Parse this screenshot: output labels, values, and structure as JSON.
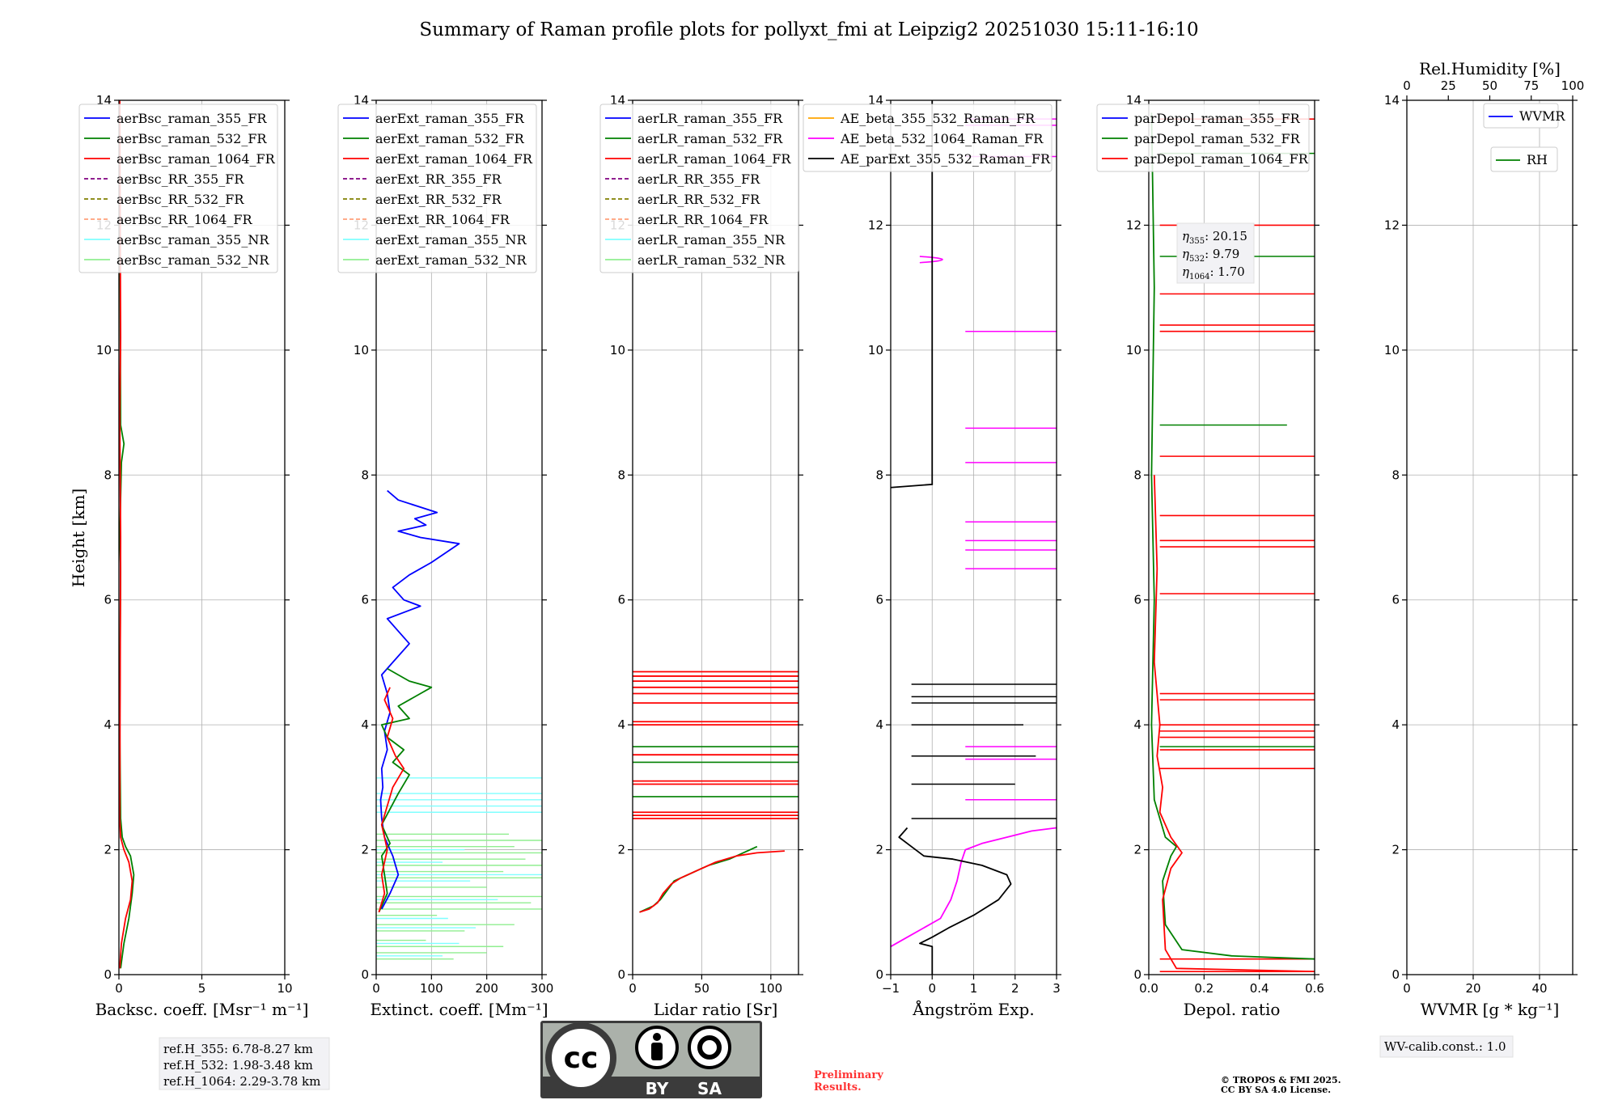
{
  "figure_title": "Summary of Raman profile plots for pollyxt_fmi at Leipzig2 20251030 15:11-16:10",
  "shared_ylabel": "Height [km]",
  "chart_data": [
    {
      "type": "line",
      "name": "backscatter",
      "xlabel": "Backsc. coeff. [Msr⁻¹ m⁻¹]",
      "xlim": [
        0,
        10
      ],
      "ylim": [
        0,
        14
      ],
      "xticks": [
        "0",
        "5",
        "10"
      ],
      "xtick_values": [
        0,
        5,
        10
      ],
      "yticks": [
        "0",
        "2",
        "4",
        "6",
        "8",
        "10",
        "12",
        "14"
      ],
      "legend": [
        {
          "label": "aerBsc_raman_355_FR",
          "color": "#0000ff",
          "style": "solid"
        },
        {
          "label": "aerBsc_raman_532_FR",
          "color": "#008000",
          "style": "solid"
        },
        {
          "label": "aerBsc_raman_1064_FR",
          "color": "#ff0000",
          "style": "solid"
        },
        {
          "label": "aerBsc_RR_355_FR",
          "color": "#800080",
          "style": "dashed"
        },
        {
          "label": "aerBsc_RR_532_FR",
          "color": "#808000",
          "style": "dashed"
        },
        {
          "label": "aerBsc_RR_1064_FR",
          "color": "#ffa07a",
          "style": "dashed"
        },
        {
          "label": "aerBsc_raman_355_NR",
          "color": "#7fffff",
          "style": "solid"
        },
        {
          "label": "aerBsc_raman_532_NR",
          "color": "#90ee90",
          "style": "solid"
        }
      ],
      "series": [
        {
          "name": "aerBsc_raman_532_FR",
          "color": "#008000",
          "x": [
            0.1,
            0.3,
            0.6,
            0.8,
            0.9,
            0.7,
            0.4,
            0.2,
            0.1,
            0.05,
            0.1,
            0.05,
            0.15,
            0.3,
            0.1,
            0.05
          ],
          "y": [
            0.1,
            0.5,
            0.9,
            1.3,
            1.6,
            1.9,
            2.05,
            2.2,
            2.5,
            4.0,
            6.5,
            7.0,
            8.2,
            8.5,
            8.8,
            13.2
          ]
        },
        {
          "name": "aerBsc_raman_1064_FR",
          "color": "#ff0000",
          "x": [
            0.05,
            0.15,
            0.4,
            0.7,
            0.8,
            0.6,
            0.3,
            0.1,
            0.05,
            0.1,
            0.05,
            0.1,
            0.05
          ],
          "y": [
            0.1,
            0.5,
            0.9,
            1.2,
            1.5,
            1.8,
            2.0,
            2.2,
            2.5,
            7.0,
            9.0,
            10.2,
            14.0
          ]
        }
      ]
    },
    {
      "type": "line",
      "name": "extinction",
      "xlabel": "Extinct. coeff. [Mm⁻¹]",
      "xlim": [
        0,
        300
      ],
      "ylim": [
        0,
        14
      ],
      "xticks": [
        "0",
        "100",
        "200",
        "300"
      ],
      "xtick_values": [
        0,
        100,
        200,
        300
      ],
      "yticks": [
        "0",
        "2",
        "4",
        "6",
        "8",
        "10",
        "12",
        "14"
      ],
      "legend": [
        {
          "label": "aerExt_raman_355_FR",
          "color": "#0000ff",
          "style": "solid"
        },
        {
          "label": "aerExt_raman_532_FR",
          "color": "#008000",
          "style": "solid"
        },
        {
          "label": "aerExt_raman_1064_FR",
          "color": "#ff0000",
          "style": "solid"
        },
        {
          "label": "aerExt_RR_355_FR",
          "color": "#800080",
          "style": "dashed"
        },
        {
          "label": "aerExt_RR_532_FR",
          "color": "#808000",
          "style": "dashed"
        },
        {
          "label": "aerExt_RR_1064_FR",
          "color": "#ffa07a",
          "style": "dashed"
        },
        {
          "label": "aerExt_raman_355_NR",
          "color": "#7fffff",
          "style": "solid"
        },
        {
          "label": "aerExt_raman_532_NR",
          "color": "#90ee90",
          "style": "solid"
        }
      ],
      "series": [
        {
          "name": "aerExt_raman_355_FR",
          "color": "#0000ff",
          "x": [
            10,
            25,
            40,
            30,
            15,
            10,
            8,
            12,
            10,
            20,
            15,
            25,
            20,
            10,
            30,
            60,
            40,
            20,
            80,
            50,
            30,
            60,
            100,
            150,
            80,
            40,
            90,
            70,
            110,
            40,
            20
          ],
          "y": [
            1.05,
            1.3,
            1.6,
            1.9,
            2.2,
            2.5,
            2.8,
            3.0,
            3.3,
            3.6,
            3.9,
            4.2,
            4.5,
            4.8,
            5.0,
            5.3,
            5.5,
            5.7,
            5.9,
            6.0,
            6.2,
            6.4,
            6.6,
            6.9,
            7.0,
            7.1,
            7.2,
            7.3,
            7.4,
            7.6,
            7.75
          ]
        },
        {
          "name": "aerExt_raman_532_FR",
          "color": "#008000",
          "x": [
            5,
            20,
            15,
            10,
            25,
            10,
            40,
            60,
            30,
            50,
            20,
            10,
            60,
            40,
            80,
            100,
            60,
            40,
            20
          ],
          "y": [
            1.0,
            1.3,
            1.6,
            1.9,
            2.1,
            2.4,
            2.9,
            3.2,
            3.4,
            3.6,
            3.8,
            4.0,
            4.1,
            4.3,
            4.5,
            4.6,
            4.7,
            4.8,
            4.9
          ]
        },
        {
          "name": "aerExt_raman_1064_FR",
          "color": "#ff0000",
          "x": [
            5,
            15,
            10,
            20,
            10,
            30,
            50,
            35,
            20,
            30,
            15,
            25
          ],
          "y": [
            1.0,
            1.3,
            1.6,
            2.0,
            2.4,
            3.0,
            3.3,
            3.5,
            3.8,
            4.1,
            4.4,
            4.6
          ]
        }
      ]
    },
    {
      "type": "line",
      "name": "lidar-ratio",
      "xlabel": "Lidar ratio [Sr]",
      "xlim": [
        0,
        120
      ],
      "ylim": [
        0,
        14
      ],
      "xticks": [
        "0",
        "50",
        "100"
      ],
      "xtick_values": [
        0,
        50,
        100
      ],
      "yticks": [
        "0",
        "2",
        "4",
        "6",
        "8",
        "10",
        "12",
        "14"
      ],
      "legend": [
        {
          "label": "aerLR_raman_355_FR",
          "color": "#0000ff",
          "style": "solid"
        },
        {
          "label": "aerLR_raman_532_FR",
          "color": "#008000",
          "style": "solid"
        },
        {
          "label": "aerLR_raman_1064_FR",
          "color": "#ff0000",
          "style": "solid"
        },
        {
          "label": "aerLR_RR_355_FR",
          "color": "#800080",
          "style": "dashed"
        },
        {
          "label": "aerLR_RR_532_FR",
          "color": "#808000",
          "style": "dashed"
        },
        {
          "label": "aerLR_RR_1064_FR",
          "color": "#ffa07a",
          "style": "dashed"
        },
        {
          "label": "aerLR_raman_355_NR",
          "color": "#7fffff",
          "style": "solid"
        },
        {
          "label": "aerLR_raman_532_NR",
          "color": "#90ee90",
          "style": "solid"
        }
      ],
      "series": [
        {
          "name": "aerLR_raman_532_FR",
          "color": "#008000",
          "x": [
            5,
            15,
            20,
            25,
            30,
            40,
            50,
            55,
            70,
            80,
            90
          ],
          "y": [
            1.0,
            1.1,
            1.2,
            1.35,
            1.5,
            1.6,
            1.7,
            1.75,
            1.85,
            1.95,
            2.05
          ]
        },
        {
          "name": "aerLR_raman_1064_FR",
          "color": "#ff0000",
          "x": [
            5,
            12,
            18,
            22,
            28,
            35,
            45,
            60,
            75,
            90,
            110
          ],
          "y": [
            1.0,
            1.05,
            1.15,
            1.3,
            1.45,
            1.55,
            1.65,
            1.8,
            1.9,
            1.95,
            1.98
          ]
        }
      ]
    },
    {
      "type": "line",
      "name": "angstrom",
      "xlabel": "Ångström Exp.",
      "xlim": [
        -1,
        3
      ],
      "ylim": [
        0,
        14
      ],
      "xticks": [
        "−1",
        "0",
        "1",
        "2",
        "3"
      ],
      "xtick_values": [
        -1,
        0,
        1,
        2,
        3
      ],
      "yticks": [
        "0",
        "2",
        "4",
        "6",
        "8",
        "10",
        "12",
        "14"
      ],
      "legend": [
        {
          "label": "AE_beta_355_532_Raman_FR",
          "color": "#ffa500",
          "style": "solid"
        },
        {
          "label": "AE_beta_532_1064_Raman_FR",
          "color": "#ff00ff",
          "style": "solid"
        },
        {
          "label": "AE_parExt_355_532_Raman_FR",
          "color": "#000000",
          "style": "solid"
        }
      ],
      "series": [
        {
          "name": "AE_beta_532_1064_Raman_FR",
          "color": "#ff00ff",
          "x": [
            -1.0,
            -0.6,
            -0.2,
            0.2,
            0.45,
            0.6,
            0.7,
            0.8,
            1.2,
            1.8,
            2.4,
            3.0
          ],
          "y": [
            0.45,
            0.6,
            0.75,
            0.9,
            1.2,
            1.5,
            1.8,
            2.0,
            2.1,
            2.2,
            2.3,
            2.35
          ]
        },
        {
          "name": "AE_parExt_355_532_Raman_FR",
          "color": "#000000",
          "x": [
            0.0,
            0.0,
            -0.3,
            0.0,
            0.4,
            1.0,
            1.6,
            1.9,
            1.8,
            1.2,
            0.5,
            -0.2,
            -0.5,
            -0.8,
            -0.6
          ],
          "y": [
            0.0,
            0.45,
            0.5,
            0.6,
            0.75,
            0.95,
            1.2,
            1.45,
            1.6,
            1.75,
            1.85,
            1.9,
            2.05,
            2.2,
            2.35
          ]
        }
      ]
    },
    {
      "type": "line",
      "name": "depolarization",
      "xlabel": "Depol. ratio",
      "xlim": [
        0,
        0.6
      ],
      "ylim": [
        0,
        14
      ],
      "xticks": [
        "0.0",
        "0.2",
        "0.4",
        "0.6"
      ],
      "xtick_values": [
        0,
        0.2,
        0.4,
        0.6
      ],
      "yticks": [
        "0",
        "2",
        "4",
        "6",
        "8",
        "10",
        "12",
        "14"
      ],
      "legend": [
        {
          "label": "parDepol_raman_355_FR",
          "color": "#0000ff",
          "style": "solid"
        },
        {
          "label": "parDepol_raman_532_FR",
          "color": "#008000",
          "style": "solid"
        },
        {
          "label": "parDepol_raman_1064_FR",
          "color": "#ff0000",
          "style": "solid"
        }
      ],
      "annotation": [
        {
          "sym": "η",
          "sub": "355",
          "val": ": 20.15"
        },
        {
          "sym": "η",
          "sub": "532",
          "val": ": 9.79"
        },
        {
          "sym": "η",
          "sub": "1064",
          "val": ": 1.70"
        }
      ],
      "series": [
        {
          "name": "parDepol_raman_532_FR",
          "color": "#008000",
          "x": [
            0.6,
            0.3,
            0.12,
            0.06,
            0.05,
            0.08,
            0.1,
            0.06,
            0.02,
            0.01,
            0.02,
            0.01,
            0.02,
            0.01
          ],
          "y": [
            0.25,
            0.3,
            0.4,
            0.8,
            1.5,
            1.9,
            2.05,
            2.2,
            2.8,
            4.0,
            6.0,
            8.0,
            11.0,
            13.8
          ]
        },
        {
          "name": "parDepol_raman_1064_FR",
          "color": "#ff0000",
          "x": [
            0.6,
            0.1,
            0.06,
            0.05,
            0.08,
            0.12,
            0.08,
            0.04,
            0.05,
            0.03,
            0.04,
            0.02,
            0.03,
            0.02
          ],
          "y": [
            0.05,
            0.1,
            0.4,
            1.2,
            1.7,
            1.95,
            2.2,
            2.6,
            3.0,
            3.5,
            4.0,
            5.0,
            6.5,
            8.0
          ]
        }
      ]
    },
    {
      "type": "line",
      "name": "water-vapor",
      "xlabel": "WVMR [g * kg⁻¹]",
      "xlim": [
        0,
        50
      ],
      "ylim": [
        0,
        14
      ],
      "xticks": [
        "0",
        "20",
        "40"
      ],
      "xtick_values": [
        0,
        20,
        40
      ],
      "yticks": [
        "0",
        "2",
        "4",
        "6",
        "8",
        "10",
        "12",
        "14"
      ],
      "top_axis_label": "Rel.Humidity [%]",
      "top_xticks": [
        "0",
        "25",
        "50",
        "75",
        "100"
      ],
      "legend": [
        {
          "label": "WVMR",
          "color": "#0000ff",
          "style": "solid"
        },
        {
          "label": "RH",
          "color": "#008000",
          "style": "solid"
        }
      ],
      "series": []
    }
  ],
  "info_boxes": {
    "ref_heights": [
      "ref.H_355: 6.78-8.27 km",
      "ref.H_532: 1.98-3.48 km",
      "ref.H_1064: 2.29-3.78 km"
    ],
    "wv_calib": "WV-calib.const.: 1.0",
    "preliminary": [
      "Preliminary",
      "Results."
    ],
    "copyright": [
      "© TROPOS & FMI 2025.",
      "CC BY SA 4.0 License."
    ]
  },
  "license_badge": {
    "by": "BY",
    "sa": "SA",
    "cc": "cc"
  },
  "colors": {
    "nr355": "#7fffff",
    "nr532": "#90ee90",
    "grid": "#b0b0b0"
  }
}
